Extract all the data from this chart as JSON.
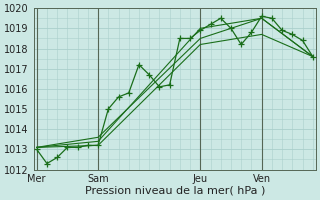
{
  "background_color": "#cce8e4",
  "grid_color": "#aacfcc",
  "line_color": "#1a6e1a",
  "marker_color": "#1a6e1a",
  "xlabel": "Pression niveau de la mer( hPa )",
  "xlabel_fontsize": 8,
  "ylim": [
    1012,
    1020
  ],
  "yticks": [
    1012,
    1013,
    1014,
    1015,
    1016,
    1017,
    1018,
    1019,
    1020
  ],
  "xtick_labels": [
    "Mer",
    "Sam",
    "Jeu",
    "Ven"
  ],
  "xtick_positions": [
    0,
    6,
    16,
    22
  ],
  "vline_positions": [
    0,
    6,
    16,
    22
  ],
  "total_points": 28,
  "series": [
    {
      "x": [
        0,
        1,
        2,
        3,
        4,
        5,
        6,
        7,
        8,
        9,
        10,
        11,
        12,
        13,
        14,
        15,
        16,
        17,
        18,
        19,
        20,
        21,
        22,
        23,
        24,
        25,
        26,
        27
      ],
      "y": [
        1013.0,
        1012.3,
        1012.6,
        1013.1,
        1013.1,
        1013.2,
        1013.2,
        1015.0,
        1015.6,
        1015.8,
        1017.2,
        1016.7,
        1016.1,
        1016.2,
        1018.5,
        1018.5,
        1018.9,
        1019.2,
        1019.5,
        1019.0,
        1018.2,
        1018.8,
        1019.6,
        1019.5,
        1018.9,
        1018.7,
        1018.4,
        1017.6
      ],
      "has_markers": true
    },
    {
      "x": [
        0,
        6,
        16,
        22,
        27
      ],
      "y": [
        1013.1,
        1013.2,
        1018.2,
        1018.7,
        1017.6
      ],
      "has_markers": false
    },
    {
      "x": [
        0,
        6,
        16,
        22,
        27
      ],
      "y": [
        1013.1,
        1013.4,
        1019.0,
        1019.5,
        1017.6
      ],
      "has_markers": false
    },
    {
      "x": [
        0,
        6,
        16,
        22,
        27
      ],
      "y": [
        1013.1,
        1013.6,
        1018.5,
        1019.5,
        1017.6
      ],
      "has_markers": false
    }
  ]
}
